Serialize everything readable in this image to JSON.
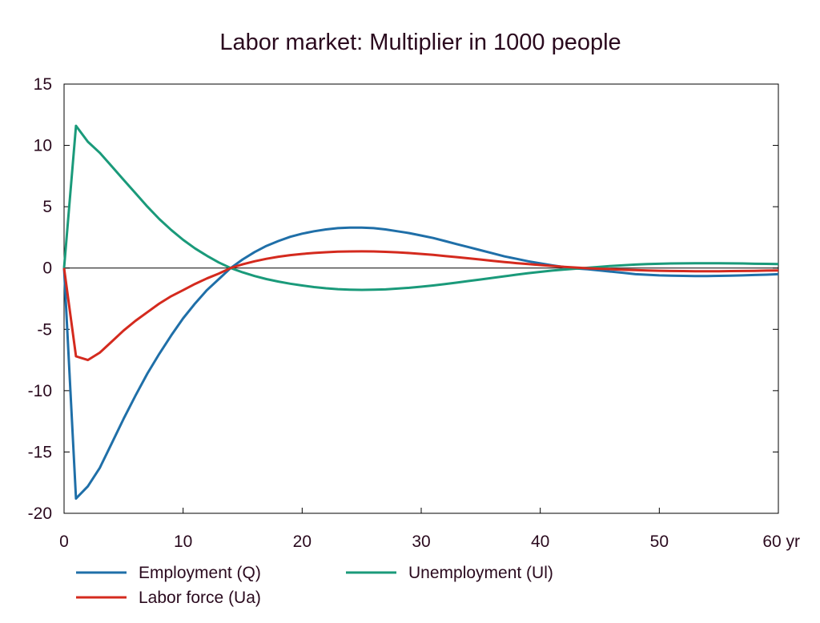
{
  "chart_data": {
    "type": "line",
    "title": "Labor market: Multiplier in 1000 people",
    "xlabel": "",
    "ylabel": "",
    "xlim": [
      0,
      60
    ],
    "ylim": [
      -20,
      15
    ],
    "x_ticks": [
      0,
      10,
      20,
      30,
      40,
      50,
      60
    ],
    "x_tick_labels": [
      "0",
      "10",
      "20",
      "30",
      "40",
      "50",
      "60 yr"
    ],
    "y_ticks": [
      15,
      10,
      5,
      0,
      -5,
      -10,
      -15,
      -20
    ],
    "y_tick_labels": [
      "15",
      "10",
      "5",
      "0",
      "-5",
      "-10",
      "-15",
      "-20"
    ],
    "zero_line": true,
    "grid": false,
    "legend_position": "bottom",
    "series": [
      {
        "name": "Employment (Q)",
        "color": "#1f6fa8",
        "points": [
          [
            0,
            0
          ],
          [
            1,
            -18.8
          ],
          [
            2,
            -17.8
          ],
          [
            3,
            -16.3
          ],
          [
            4,
            -14.3
          ],
          [
            5,
            -12.3
          ],
          [
            6,
            -10.4
          ],
          [
            7,
            -8.6
          ],
          [
            8,
            -7.0
          ],
          [
            9,
            -5.5
          ],
          [
            10,
            -4.1
          ],
          [
            11,
            -2.9
          ],
          [
            12,
            -1.8
          ],
          [
            13,
            -0.9
          ],
          [
            14,
            0.0
          ],
          [
            15,
            0.7
          ],
          [
            16,
            1.3
          ],
          [
            17,
            1.8
          ],
          [
            18,
            2.2
          ],
          [
            19,
            2.55
          ],
          [
            20,
            2.8
          ],
          [
            21,
            3.0
          ],
          [
            22,
            3.15
          ],
          [
            23,
            3.25
          ],
          [
            24,
            3.3
          ],
          [
            25,
            3.3
          ],
          [
            26,
            3.25
          ],
          [
            27,
            3.15
          ],
          [
            28,
            3.0
          ],
          [
            29,
            2.85
          ],
          [
            30,
            2.65
          ],
          [
            31,
            2.45
          ],
          [
            32,
            2.2
          ],
          [
            33,
            1.95
          ],
          [
            34,
            1.7
          ],
          [
            35,
            1.45
          ],
          [
            36,
            1.2
          ],
          [
            37,
            0.95
          ],
          [
            38,
            0.75
          ],
          [
            39,
            0.55
          ],
          [
            40,
            0.38
          ],
          [
            41,
            0.22
          ],
          [
            42,
            0.08
          ],
          [
            43,
            -0.04
          ],
          [
            44,
            -0.1
          ],
          [
            45,
            -0.2
          ],
          [
            46,
            -0.3
          ],
          [
            47,
            -0.4
          ],
          [
            48,
            -0.5
          ],
          [
            49,
            -0.55
          ],
          [
            50,
            -0.6
          ],
          [
            51,
            -0.62
          ],
          [
            52,
            -0.64
          ],
          [
            53,
            -0.65
          ],
          [
            54,
            -0.65
          ],
          [
            55,
            -0.64
          ],
          [
            56,
            -0.62
          ],
          [
            57,
            -0.6
          ],
          [
            58,
            -0.57
          ],
          [
            59,
            -0.54
          ],
          [
            60,
            -0.5
          ]
        ]
      },
      {
        "name": "Unemployment (Ul)",
        "color": "#1a9a7a",
        "points": [
          [
            0,
            0
          ],
          [
            1,
            11.6
          ],
          [
            2,
            10.3
          ],
          [
            3,
            9.4
          ],
          [
            4,
            8.3
          ],
          [
            5,
            7.2
          ],
          [
            6,
            6.1
          ],
          [
            7,
            5.0
          ],
          [
            8,
            4.0
          ],
          [
            9,
            3.1
          ],
          [
            10,
            2.3
          ],
          [
            11,
            1.6
          ],
          [
            12,
            1.0
          ],
          [
            13,
            0.45
          ],
          [
            14,
            0.0
          ],
          [
            15,
            -0.35
          ],
          [
            16,
            -0.65
          ],
          [
            17,
            -0.9
          ],
          [
            18,
            -1.1
          ],
          [
            19,
            -1.28
          ],
          [
            20,
            -1.42
          ],
          [
            21,
            -1.55
          ],
          [
            22,
            -1.65
          ],
          [
            23,
            -1.72
          ],
          [
            24,
            -1.76
          ],
          [
            25,
            -1.78
          ],
          [
            26,
            -1.77
          ],
          [
            27,
            -1.74
          ],
          [
            28,
            -1.68
          ],
          [
            29,
            -1.61
          ],
          [
            30,
            -1.52
          ],
          [
            31,
            -1.42
          ],
          [
            32,
            -1.31
          ],
          [
            33,
            -1.19
          ],
          [
            34,
            -1.06
          ],
          [
            35,
            -0.93
          ],
          [
            36,
            -0.8
          ],
          [
            37,
            -0.67
          ],
          [
            38,
            -0.54
          ],
          [
            39,
            -0.42
          ],
          [
            40,
            -0.31
          ],
          [
            41,
            -0.21
          ],
          [
            42,
            -0.12
          ],
          [
            43,
            -0.05
          ],
          [
            44,
            0.02
          ],
          [
            45,
            0.1
          ],
          [
            46,
            0.17
          ],
          [
            47,
            0.23
          ],
          [
            48,
            0.28
          ],
          [
            49,
            0.32
          ],
          [
            50,
            0.35
          ],
          [
            51,
            0.37
          ],
          [
            52,
            0.38
          ],
          [
            53,
            0.39
          ],
          [
            54,
            0.39
          ],
          [
            55,
            0.39
          ],
          [
            56,
            0.38
          ],
          [
            57,
            0.37
          ],
          [
            58,
            0.35
          ],
          [
            59,
            0.34
          ],
          [
            60,
            0.32
          ]
        ]
      },
      {
        "name": "Labor force (Ua)",
        "color": "#d42a1e",
        "points": [
          [
            0,
            0
          ],
          [
            1,
            -7.2
          ],
          [
            2,
            -7.5
          ],
          [
            3,
            -6.9
          ],
          [
            4,
            -6.0
          ],
          [
            5,
            -5.1
          ],
          [
            6,
            -4.3
          ],
          [
            7,
            -3.6
          ],
          [
            8,
            -2.9
          ],
          [
            9,
            -2.3
          ],
          [
            10,
            -1.8
          ],
          [
            11,
            -1.3
          ],
          [
            12,
            -0.85
          ],
          [
            13,
            -0.45
          ],
          [
            14,
            0.0
          ],
          [
            15,
            0.3
          ],
          [
            16,
            0.55
          ],
          [
            17,
            0.75
          ],
          [
            18,
            0.92
          ],
          [
            19,
            1.05
          ],
          [
            20,
            1.15
          ],
          [
            21,
            1.23
          ],
          [
            22,
            1.29
          ],
          [
            23,
            1.33
          ],
          [
            24,
            1.35
          ],
          [
            25,
            1.36
          ],
          [
            26,
            1.35
          ],
          [
            27,
            1.32
          ],
          [
            28,
            1.28
          ],
          [
            29,
            1.22
          ],
          [
            30,
            1.15
          ],
          [
            31,
            1.07
          ],
          [
            32,
            0.98
          ],
          [
            33,
            0.89
          ],
          [
            34,
            0.79
          ],
          [
            35,
            0.69
          ],
          [
            36,
            0.59
          ],
          [
            37,
            0.49
          ],
          [
            38,
            0.4
          ],
          [
            39,
            0.32
          ],
          [
            40,
            0.24
          ],
          [
            41,
            0.17
          ],
          [
            42,
            0.1
          ],
          [
            43,
            0.04
          ],
          [
            44,
            -0.02
          ],
          [
            45,
            -0.06
          ],
          [
            46,
            -0.1
          ],
          [
            47,
            -0.14
          ],
          [
            48,
            -0.17
          ],
          [
            49,
            -0.2
          ],
          [
            50,
            -0.22
          ],
          [
            51,
            -0.24
          ],
          [
            52,
            -0.25
          ],
          [
            53,
            -0.26
          ],
          [
            54,
            -0.26
          ],
          [
            55,
            -0.26
          ],
          [
            56,
            -0.25
          ],
          [
            57,
            -0.24
          ],
          [
            58,
            -0.23
          ],
          [
            59,
            -0.21
          ],
          [
            60,
            -0.2
          ]
        ]
      }
    ],
    "legend_layout": [
      [
        0,
        1
      ],
      [
        2
      ]
    ]
  }
}
